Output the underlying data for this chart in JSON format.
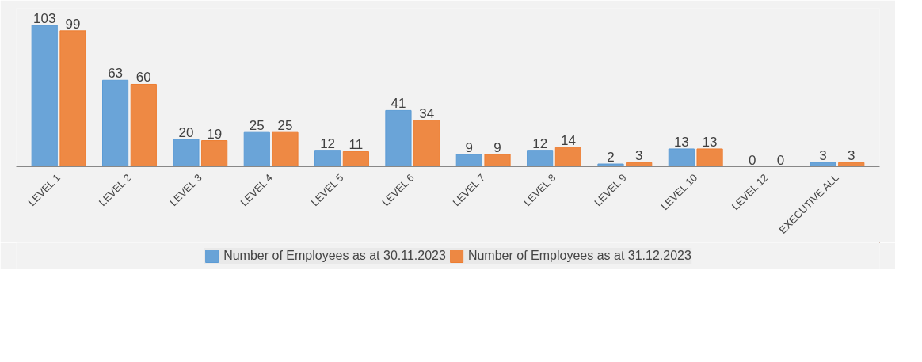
{
  "chart_data": {
    "type": "bar",
    "categories": [
      "LEVEL 1",
      "LEVEL 2",
      "LEVEL 3",
      "LEVEL 4",
      "LEVEL 5",
      "LEVEL 6",
      "LEVEL 7",
      "LEVEL 8",
      "LEVEL 9",
      "LEVEL 10",
      "LEVEL 12",
      "EXECUTIVE ALL"
    ],
    "series": [
      {
        "name": "Number of Employees as at 30.11.2023",
        "color": "#5b9bd5",
        "values": [
          103,
          63,
          20,
          25,
          12,
          41,
          9,
          12,
          2,
          13,
          0,
          3
        ]
      },
      {
        "name": "Number of Employees as at 31.12.2023",
        "color": "#ed7d31",
        "values": [
          99,
          60,
          19,
          25,
          11,
          34,
          9,
          14,
          3,
          13,
          0,
          3
        ]
      }
    ],
    "data_labels": true,
    "legend": "bottom"
  }
}
